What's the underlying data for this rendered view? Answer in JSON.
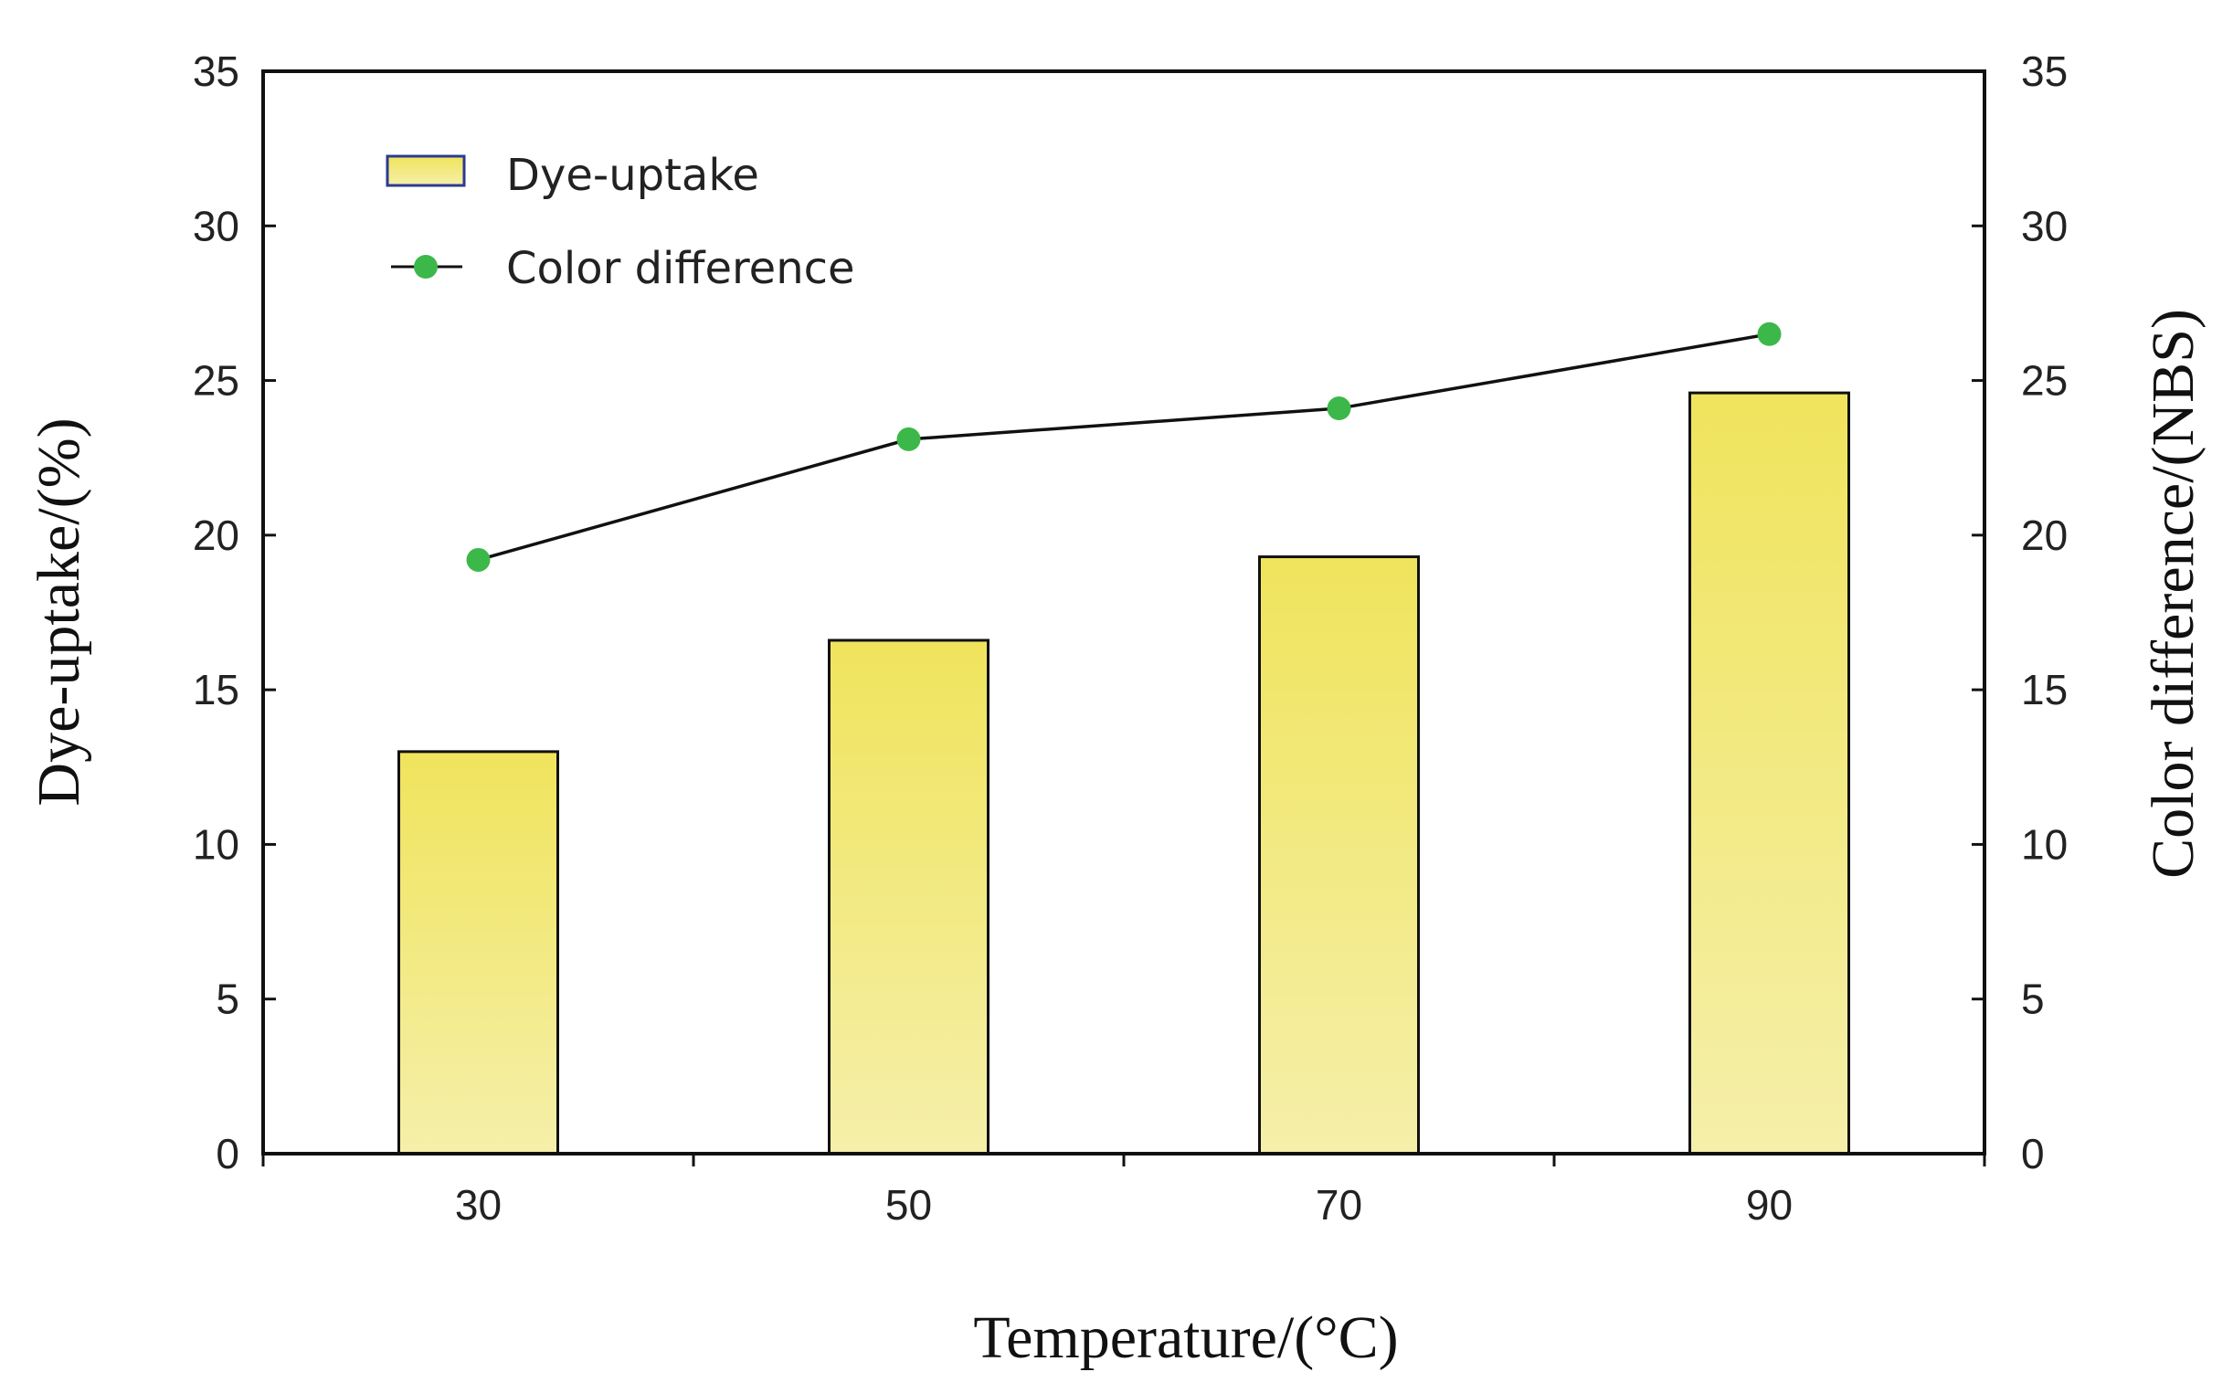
{
  "chart_data": {
    "type": "bar",
    "categories": [
      "30",
      "50",
      "70",
      "90"
    ],
    "xlabel": "Temperature/(°C)",
    "ylabel": "Dye-uptake/(%)",
    "ylabel_right": "Color difference/(NBS)",
    "ylim": [
      0,
      35
    ],
    "ylim_right": [
      0,
      35
    ],
    "yticks": [
      "0",
      "5",
      "10",
      "15",
      "20",
      "25",
      "30",
      "35"
    ],
    "grid": false,
    "legend_position": "top-left",
    "series": [
      {
        "name": "Dye-uptake",
        "type": "bar",
        "axis": "left",
        "values": [
          13.0,
          16.6,
          19.3,
          24.6
        ]
      },
      {
        "name": "Color difference",
        "type": "line",
        "axis": "right",
        "values": [
          19.2,
          23.1,
          24.1,
          26.5
        ]
      }
    ],
    "colors": {
      "bar_top": "#f0e45c",
      "bar_bottom": "#f5efaa",
      "line": "#111111",
      "marker": "#3cb84a"
    }
  }
}
